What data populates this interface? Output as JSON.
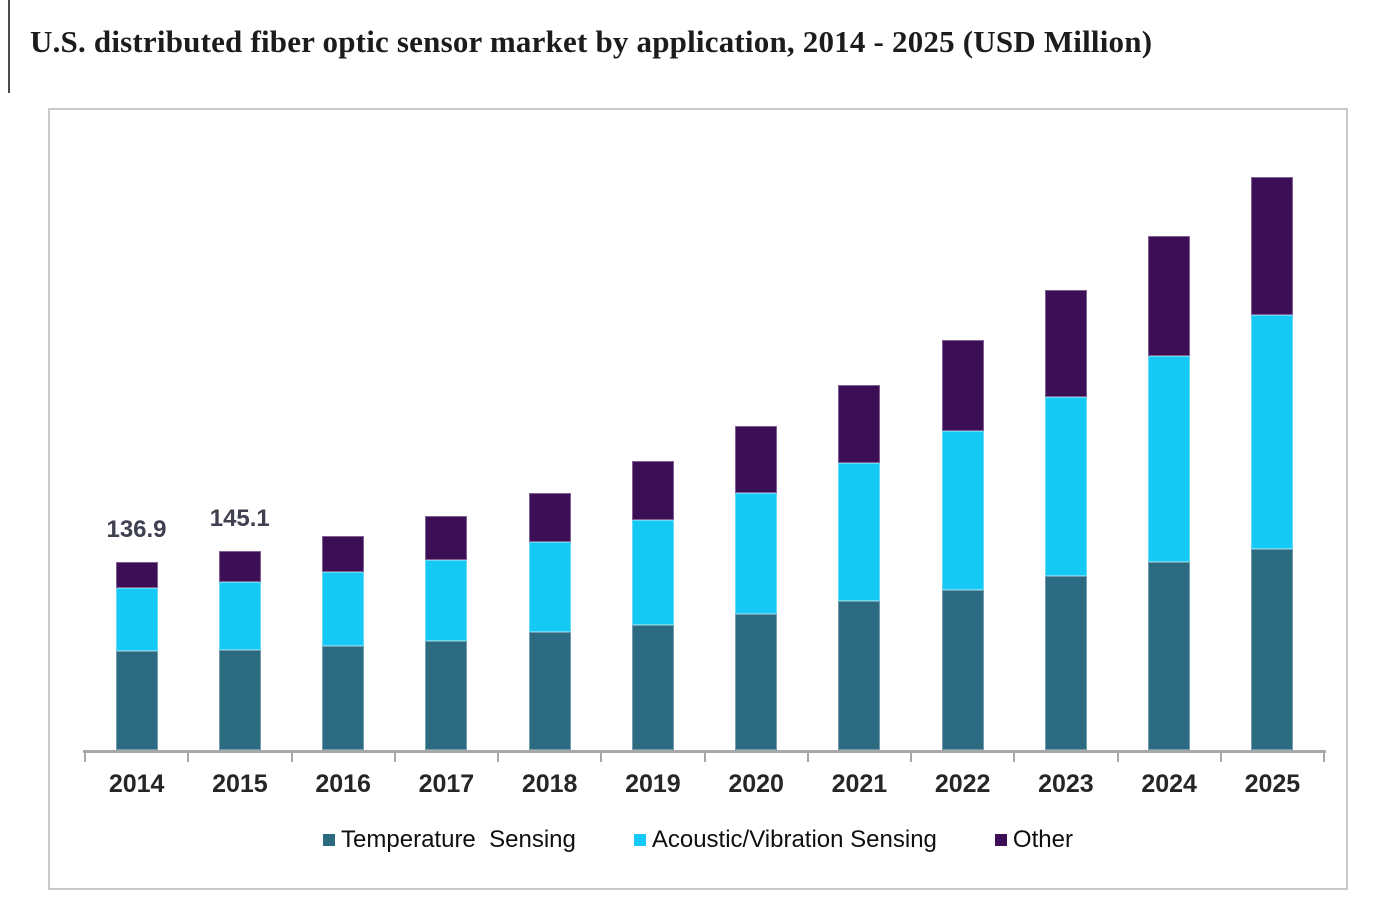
{
  "page": {
    "title": "U.S. distributed fiber optic sensor market by application, 2014 - 2025 (USD Million)"
  },
  "colors": {
    "temperature_sensing": "#2C6A81",
    "acoustic_vibration_sensing": "#16C9F5",
    "other": "#3B0E56",
    "axis": "#a8a8a8",
    "chart_border": "#c9c9c9",
    "title_text": "#1c1c1c"
  },
  "chart_data": {
    "type": "bar",
    "stacked": true,
    "title": "U.S. distributed fiber optic sensor market by application, 2014 - 2025 (USD Million)",
    "unit": "USD Million",
    "xlabel": "",
    "ylabel": "",
    "grid": false,
    "legend_position": "bottom",
    "ylim": [
      0,
      466
    ],
    "categories": [
      "2014",
      "2015",
      "2016",
      "2017",
      "2018",
      "2019",
      "2020",
      "2021",
      "2022",
      "2023",
      "2024",
      "2025"
    ],
    "series": [
      {
        "name": "Temperature  Sensing",
        "color": "#2C6A81",
        "values": [
          72.1,
          72.9,
          75.8,
          79.4,
          86.0,
          91.1,
          99.1,
          108.6,
          116.6,
          126.8,
          137.0,
          146.5
        ]
      },
      {
        "name": "Acoustic/Vibration Sensing",
        "color": "#16C9F5",
        "values": [
          45.9,
          49.6,
          53.9,
          59.0,
          65.6,
          76.5,
          88.2,
          100.6,
          115.9,
          130.4,
          150.1,
          170.5
        ]
      },
      {
        "name": "Other",
        "color": "#3B0E56",
        "values": [
          18.9,
          22.6,
          26.2,
          32.1,
          35.7,
          43.0,
          48.8,
          56.8,
          66.3,
          78.0,
          87.4,
          100.6
        ]
      }
    ],
    "totals": [
      136.9,
      145.1,
      155.9,
      170.5,
      187.3,
      210.6,
      236.1,
      266.0,
      298.8,
      335.2,
      374.5,
      417.6
    ],
    "data_labels": [
      {
        "category": "2014",
        "text": "136.9"
      },
      {
        "category": "2015",
        "text": "145.1"
      }
    ]
  }
}
